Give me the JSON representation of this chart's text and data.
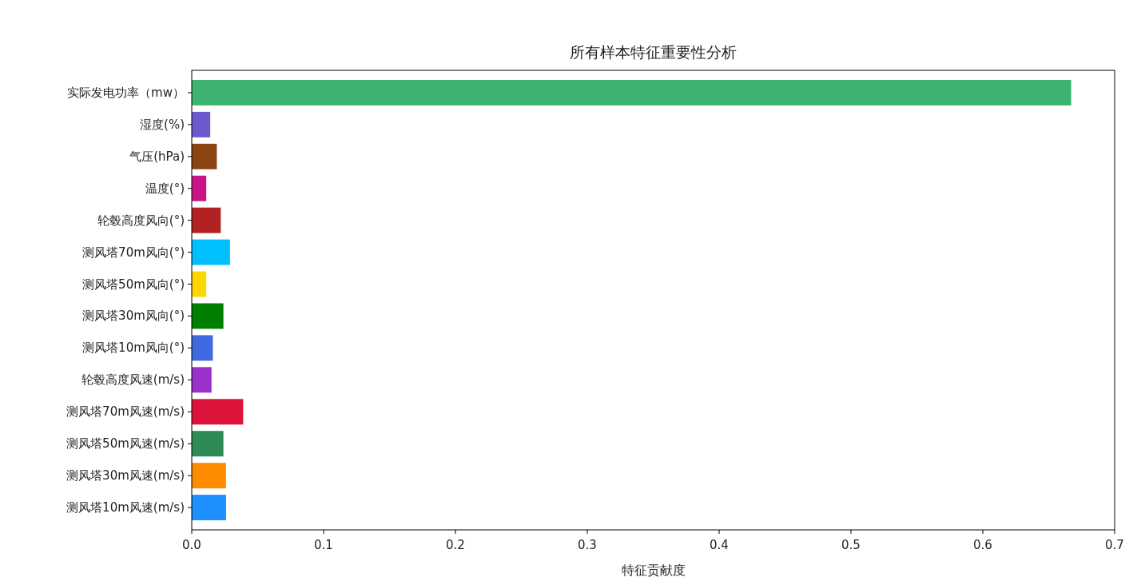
{
  "chart_data": {
    "type": "bar",
    "orientation": "horizontal",
    "title": "所有样本特征重要性分析",
    "xlabel": "特征贡献度",
    "categories": [
      "实际发电功率（mw）",
      "湿度(%)",
      "气压(hPa)",
      "温度(°)",
      "轮毂高度风向(°)",
      "测风塔70m风向(°)",
      "测风塔50m风向(°)",
      "测风塔30m风向(°)",
      "测风塔10m风向(°)",
      "轮毂高度风速(m/s)",
      "测风塔70m风速(m/s)",
      "测风塔50m风速(m/s)",
      "测风塔30m风速(m/s)",
      "测风塔10m风速(m/s)"
    ],
    "values": [
      0.667,
      0.014,
      0.019,
      0.011,
      0.022,
      0.029,
      0.011,
      0.024,
      0.016,
      0.015,
      0.039,
      0.024,
      0.026,
      0.026
    ],
    "colors": [
      "#3cb371",
      "#6a5acd",
      "#8b4513",
      "#c71585",
      "#b22222",
      "#00bfff",
      "#ffd700",
      "#008000",
      "#4169e1",
      "#9932cc",
      "#dc143c",
      "#2e8b57",
      "#ff8c00",
      "#1e90ff"
    ],
    "xlim": [
      0,
      0.7
    ],
    "xticks": [
      {
        "value": 0,
        "label": "0.0"
      },
      0.1,
      0.2,
      0.3,
      0.4,
      0.5,
      0.6,
      0.7
    ]
  }
}
